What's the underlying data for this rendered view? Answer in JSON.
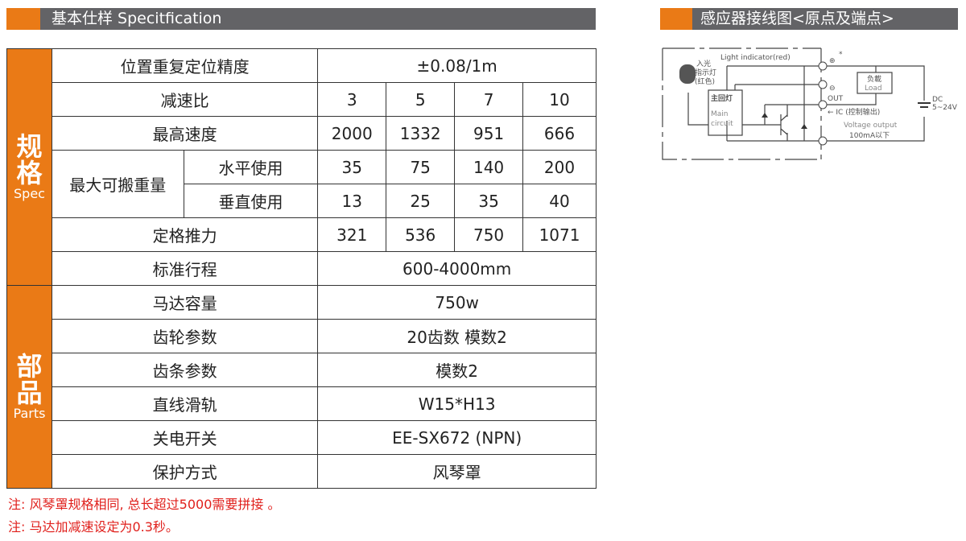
{
  "spec_header": {
    "title": "基本仕样 Specitfication"
  },
  "wiring_header": {
    "title": "感应器接线图<原点及端点>"
  },
  "colors": {
    "accent": "#ea7a16",
    "header_gray": "#636366",
    "note_red": "#e0201c"
  },
  "table": {
    "spec_section": {
      "label": "规格",
      "sub": "Spec"
    },
    "parts_section": {
      "label": "部品",
      "sub": "Parts"
    },
    "rows": [
      {
        "label": "位置重复定位精度",
        "value": "±0.08/1m"
      },
      {
        "label": "减速比",
        "values": [
          "3",
          "5",
          "7",
          "10"
        ]
      },
      {
        "label": "最高速度",
        "values": [
          "2000",
          "1332",
          "951",
          "666"
        ]
      },
      {
        "label": "最大可搬重量",
        "sub": "水平使用",
        "values": [
          "35",
          "75",
          "140",
          "200"
        ]
      },
      {
        "sub": "垂直使用",
        "values": [
          "13",
          "25",
          "35",
          "40"
        ]
      },
      {
        "label": "定格推力",
        "values": [
          "321",
          "536",
          "750",
          "1071"
        ]
      },
      {
        "label": "标准行程",
        "value": "600-4000mm"
      },
      {
        "label": "马达容量",
        "value": "750w"
      },
      {
        "label": "齿轮参数",
        "value": "20齿数  模数2"
      },
      {
        "label": "齿条参数",
        "value": "模数2"
      },
      {
        "label": "直线滑轨",
        "value": "W15*H13"
      },
      {
        "label": "关电开关",
        "value": "EE-SX672 (NPN)"
      },
      {
        "label": "保护方式",
        "value": "风琴罩"
      }
    ]
  },
  "notes": [
    "注: 风琴罩规格相同, 总长超过5000需要拼接 。",
    "注: 马达加减速设定为0.3秒。"
  ],
  "diagram": {
    "light_indicator": "Light indicator(red)",
    "in_light": "入光",
    "indicator": "指示灯",
    "red": "(红色)",
    "main_cn": "主回灯",
    "main_en1": "Main",
    "main_en2": "circuit",
    "load_cn": "负載",
    "load_en": "Load",
    "out": "OUT",
    "ic": "← IC (控制输出)",
    "voltage": "Voltage output",
    "current": "100mA以下",
    "dc": "DC",
    "dc_range": "5~24V",
    "star": "*"
  }
}
